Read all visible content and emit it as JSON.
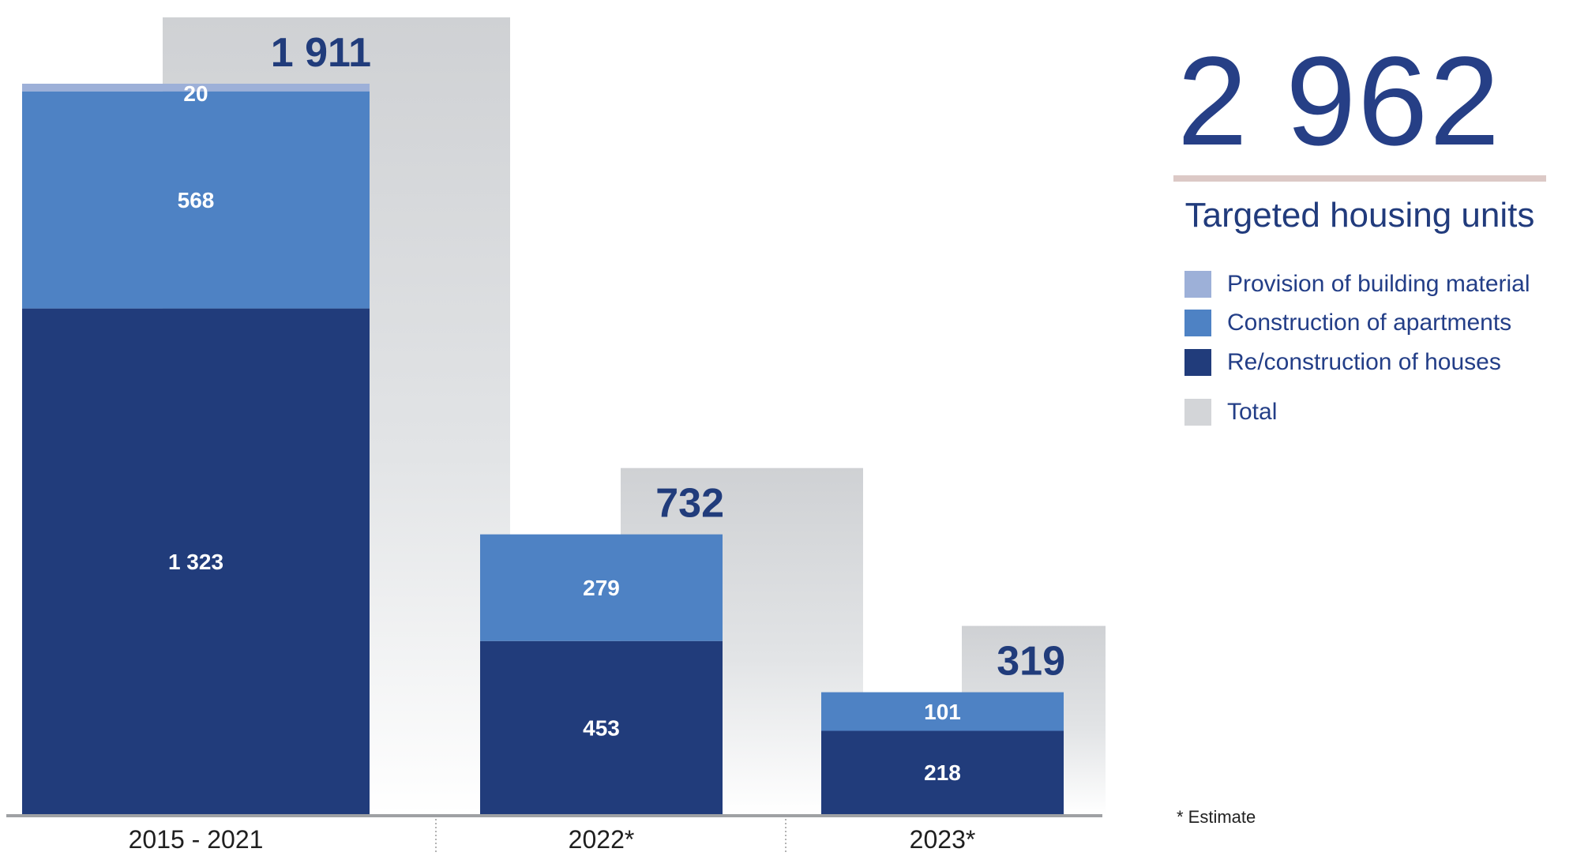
{
  "chart_data": {
    "type": "bar",
    "stacked": true,
    "categories": [
      "2015 - 2021",
      "2022*",
      "2023*"
    ],
    "series": [
      {
        "name": "Re/construction of houses",
        "values": [
          1323,
          453,
          218
        ],
        "labels": [
          "1 323",
          "453",
          "218"
        ],
        "color": "#213c7b"
      },
      {
        "name": "Construction of apartments",
        "values": [
          568,
          279,
          101
        ],
        "labels": [
          "568",
          "279",
          "101"
        ],
        "color": "#4e82c4"
      },
      {
        "name": "Provision of building material",
        "values": [
          20,
          0,
          0
        ],
        "labels": [
          "20",
          "",
          ""
        ],
        "color": "#9db0d8"
      }
    ],
    "totals": {
      "name": "Total",
      "values": [
        1911,
        732,
        319
      ],
      "labels": [
        "1 911",
        "732",
        "319"
      ],
      "color": "#d3d5d8"
    },
    "ylim": [
      0,
      1911
    ],
    "grid": false,
    "legend_position": "right"
  },
  "summary": {
    "total_value": "2 962",
    "total_label": "Targeted housing units"
  },
  "legend": {
    "items": [
      {
        "label": "Provision of building material",
        "color": "#9db0d8"
      },
      {
        "label": "Construction of apartments",
        "color": "#4e82c4"
      },
      {
        "label": "Re/construction of houses",
        "color": "#213c7b"
      },
      {
        "label": "Total",
        "color": "#d3d5d8"
      }
    ]
  },
  "footnote": "* Estimate"
}
